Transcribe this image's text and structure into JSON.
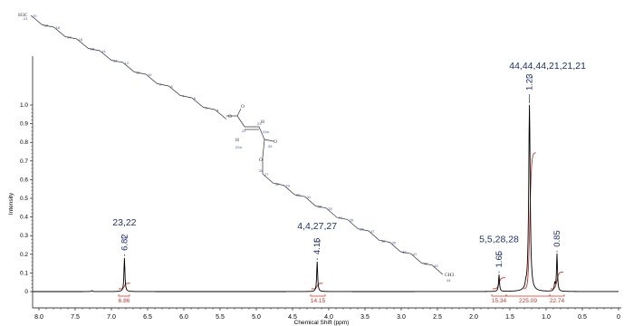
{
  "chart_data": {
    "type": "line",
    "xlabel": "Chemical Shift (ppm)",
    "ylabel": "Intensity",
    "xlim": [
      8.2,
      0.0
    ],
    "ylim": [
      -0.05,
      1.05
    ],
    "x_ticks": [
      "8.0",
      "7.5",
      "7.0",
      "6.5",
      "6.0",
      "5.5",
      "5.0",
      "4.5",
      "4.0",
      "3.5",
      "3.0",
      "2.5",
      "2.0",
      "1.5",
      "1.0",
      "0.5",
      "0"
    ],
    "y_ticks": [
      "0",
      "0.1",
      "0.2",
      "0.3",
      "0.4",
      "0.5",
      "0.6",
      "0.7",
      "0.8",
      "0.9",
      "1.0"
    ],
    "peaks": [
      {
        "shift": 6.82,
        "label": "6.82",
        "height": 0.18,
        "assignment": "23,22"
      },
      {
        "shift": 4.16,
        "label": "4.16",
        "height": 0.16,
        "assignment": "4,4,27,27"
      },
      {
        "shift": 1.65,
        "label": "1.65",
        "height": 0.09,
        "assignment": "5,5,28,28"
      },
      {
        "shift": 1.23,
        "label": "1.23",
        "height": 1.0,
        "assignment": "44,44,44,21,21,21"
      },
      {
        "shift": 0.85,
        "label": "0.85",
        "height": 0.2,
        "assignment": ""
      }
    ],
    "integrals": [
      {
        "from": 6.9,
        "to": 6.75,
        "value": "6.86"
      },
      {
        "from": 4.25,
        "to": 4.05,
        "value": "14.15"
      },
      {
        "from": 1.75,
        "to": 1.55,
        "value": "15.34"
      },
      {
        "from": 1.55,
        "to": 0.95,
        "value": "225.09"
      },
      {
        "from": 0.95,
        "to": 0.75,
        "value": "22.74"
      }
    ],
    "structure_atoms": [
      "H3C",
      "21",
      "20",
      "19",
      "18",
      "17",
      "16",
      "15",
      "14",
      "13",
      "12",
      "11",
      "10",
      "9",
      "8",
      "7",
      "6",
      "5",
      "4",
      "O",
      "O",
      "22",
      "H",
      "22a",
      "23",
      "H",
      "23a",
      "O",
      "25",
      "O",
      "26",
      "27",
      "28",
      "29",
      "30",
      "31",
      "32",
      "33",
      "34",
      "35",
      "36",
      "37",
      "38",
      "39",
      "40",
      "41",
      "42",
      "43",
      "CH3",
      "44"
    ]
  }
}
